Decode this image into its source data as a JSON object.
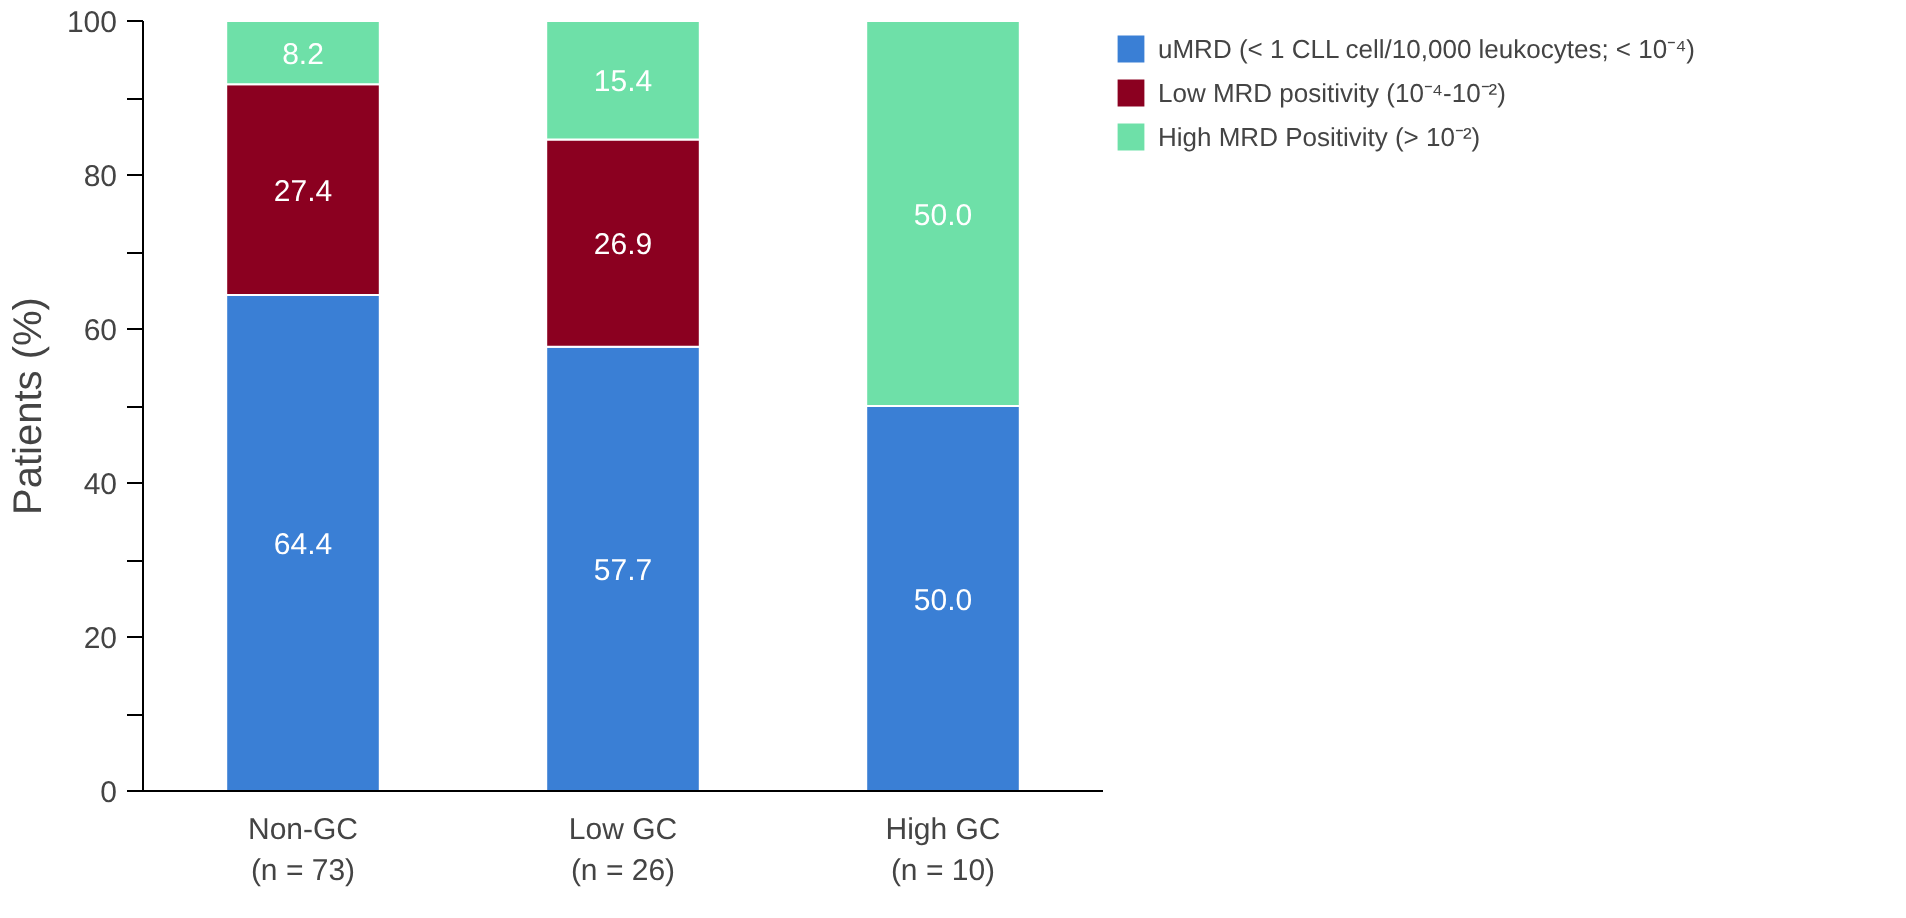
{
  "chart_data": {
    "type": "bar",
    "stacked": true,
    "ylabel": "Patients (%)",
    "categories": [
      "Non-GC\n(n = 73)",
      "Low GC\n(n = 26)",
      "High GC\n(n = 10)"
    ],
    "series": [
      {
        "name": "uMRD (< 1 CLL cell/10,000 leukocytes; < 10⁻⁴)",
        "color": "#3a7fd5",
        "values": [
          64.4,
          57.7,
          50.0
        ],
        "value_labels": [
          "64.4",
          "57.7",
          "50.0"
        ]
      },
      {
        "name": "Low MRD positivity (10⁻⁴-10⁻²)",
        "color": "#8b0020",
        "values": [
          27.4,
          26.9,
          0
        ],
        "value_labels": [
          "27.4",
          "26.9",
          null
        ]
      },
      {
        "name": "High MRD Positivity (> 10⁻²)",
        "color": "#6ee0a8",
        "values": [
          8.2,
          15.4,
          50.0
        ],
        "value_labels": [
          "8.2",
          "15.4",
          "50.0"
        ]
      }
    ],
    "ylim": [
      0,
      100
    ],
    "yticks": [
      0,
      {
        "value": 10,
        "label": null
      },
      20,
      {
        "value": 30,
        "label": null
      },
      40,
      {
        "value": 50,
        "label": null
      },
      60,
      {
        "value": 70,
        "label": null
      },
      80,
      {
        "value": 90,
        "label": null
      },
      100
    ],
    "grid": false,
    "legend": "top right"
  }
}
